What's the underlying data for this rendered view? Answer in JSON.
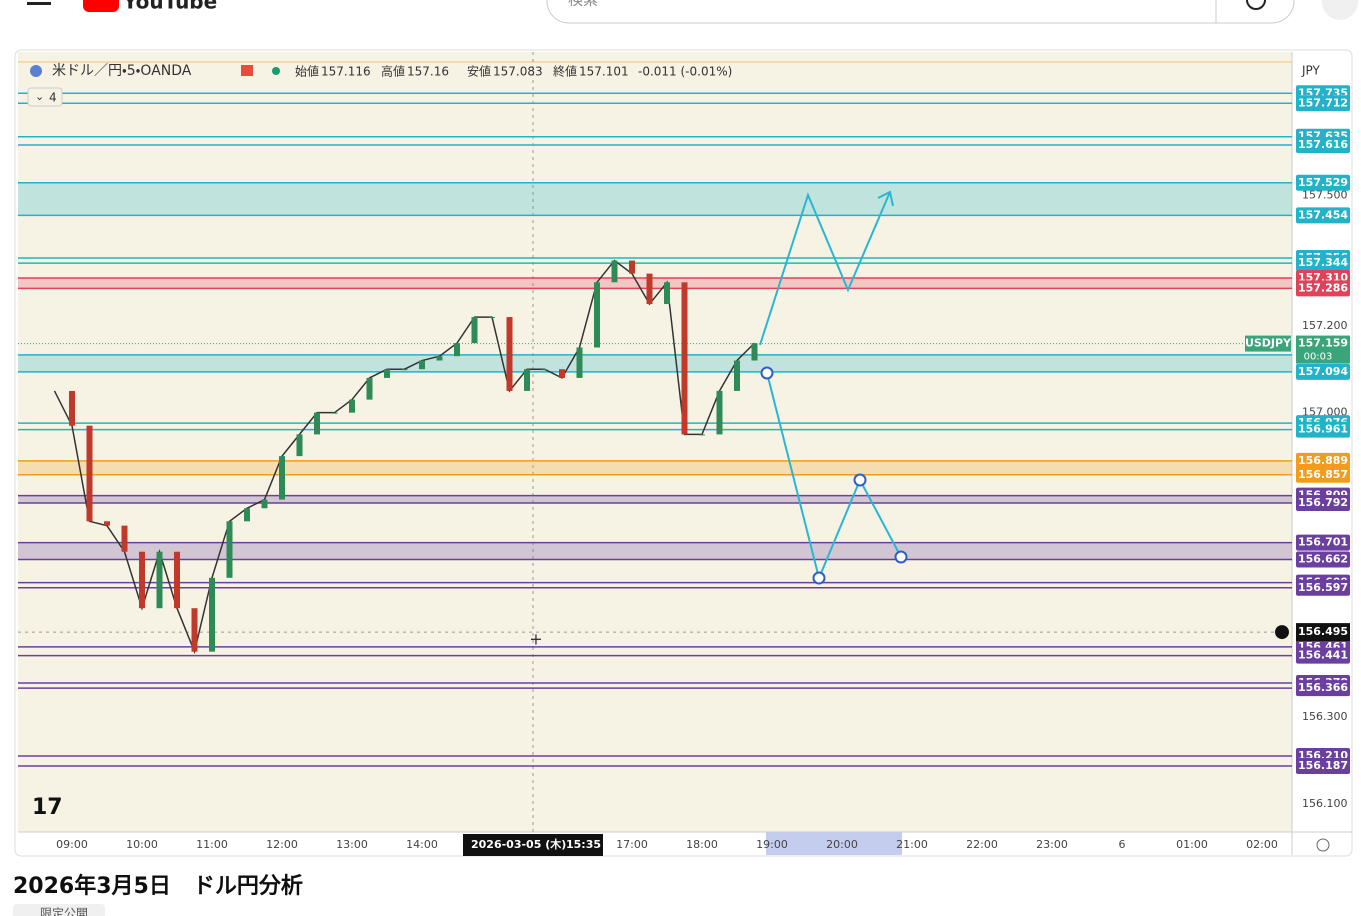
{
  "header": {
    "logo": "YouTube",
    "search_placeholder": "検索"
  },
  "chart": {
    "symbol": "米ドル／円・5・OANDA",
    "ohlc": [
      {
        "label": "始値",
        "value": 157.116
      },
      {
        "label": "高値",
        "value": 157.16
      },
      {
        "label": "安値",
        "value": 157.083
      },
      {
        "label": "終値",
        "value": 157.101
      }
    ],
    "change": "-0.011 (-0.01%)",
    "indicator_count": "4",
    "currency": "JPY",
    "ylim": [
      156.035,
      157.83
    ],
    "level_pairs": [
      {
        "top": 157.735,
        "bottom": 157.712,
        "color": "#22b3c8",
        "filled": false
      },
      {
        "top": 157.635,
        "bottom": 157.616,
        "color": "#22b3c8",
        "filled": false
      },
      {
        "top": 157.529,
        "bottom": 157.454,
        "color": "#22b3c8",
        "filled": true
      },
      {
        "top": 157.356,
        "bottom": 157.344,
        "color": "#22b3c8",
        "filled": false
      },
      {
        "top": {
          "value": 157.31,
          "label": "157.310"
        },
        "bottom": 157.286,
        "color": "#e0425a",
        "filled": true
      },
      {
        "top": 157.133,
        "bottom": 157.094,
        "color": "#22b3c8",
        "filled": true
      },
      {
        "top": 156.976,
        "bottom": 156.961,
        "color": "#22b3c8",
        "filled": false
      },
      {
        "top": 156.889,
        "bottom": 156.857,
        "color": "#f29b1d",
        "filled": true
      },
      {
        "top": 156.809,
        "bottom": 156.792,
        "color": "#6a3fa0",
        "filled": true
      },
      {
        "top": 156.701,
        "bottom": 156.662,
        "color": "#6a3fa0",
        "filled": true
      },
      {
        "top": 156.609,
        "bottom": 156.597,
        "color": "#6a3fa0",
        "filled": false
      },
      {
        "top": 156.461,
        "bottom": 156.441,
        "color": "#6a3fa0",
        "filled": false
      },
      {
        "top": 156.378,
        "bottom": 156.366,
        "color": "#6a3fa0",
        "filled": false
      },
      {
        "top": {
          "value": 156.21,
          "label": "156.210"
        },
        "bottom": 156.187,
        "color": "#6a3fa0",
        "filled": false
      }
    ],
    "yticks": [
      {
        "value": 157.5,
        "label": "157.500"
      },
      {
        "value": 157.2,
        "label": "157.200"
      },
      {
        "value": 157.0,
        "label": "157.000"
      },
      {
        "value": 156.3,
        "label": "156.300"
      },
      {
        "value": 156.1,
        "label": "156.100"
      }
    ],
    "current_price": {
      "symbol": "USDJPY",
      "value": 157.159,
      "countdown": "00:03",
      "color": "#3aa57a"
    },
    "crosshair": {
      "price": 156.495,
      "date": "2026-03-05 (木)",
      "time": "15:35"
    },
    "time_labels": [
      "09:00",
      "10:00",
      "11:00",
      "12:00",
      "13:00",
      "14:00",
      "17:00",
      "18:00",
      "19:00",
      "20:00",
      "21:00",
      "22:00",
      "23:00",
      "6",
      "01:00",
      "02:00"
    ],
    "closes": [
      157.05,
      156.97,
      156.75,
      156.74,
      156.68,
      156.55,
      156.68,
      156.55,
      156.45,
      156.62,
      156.75,
      156.78,
      156.8,
      156.9,
      156.95,
      157.0,
      157.0,
      157.03,
      157.08,
      157.1,
      157.1,
      157.12,
      157.13,
      157.16,
      157.22,
      157.22,
      157.05,
      157.1,
      157.1,
      157.08,
      157.15,
      157.3,
      157.35,
      157.32,
      157.25,
      157.3,
      156.95,
      156.95,
      157.05,
      157.12,
      157.16
    ]
  },
  "video": {
    "title": "2026年3月5日　ドル円分析",
    "visibility": "限定公開"
  }
}
